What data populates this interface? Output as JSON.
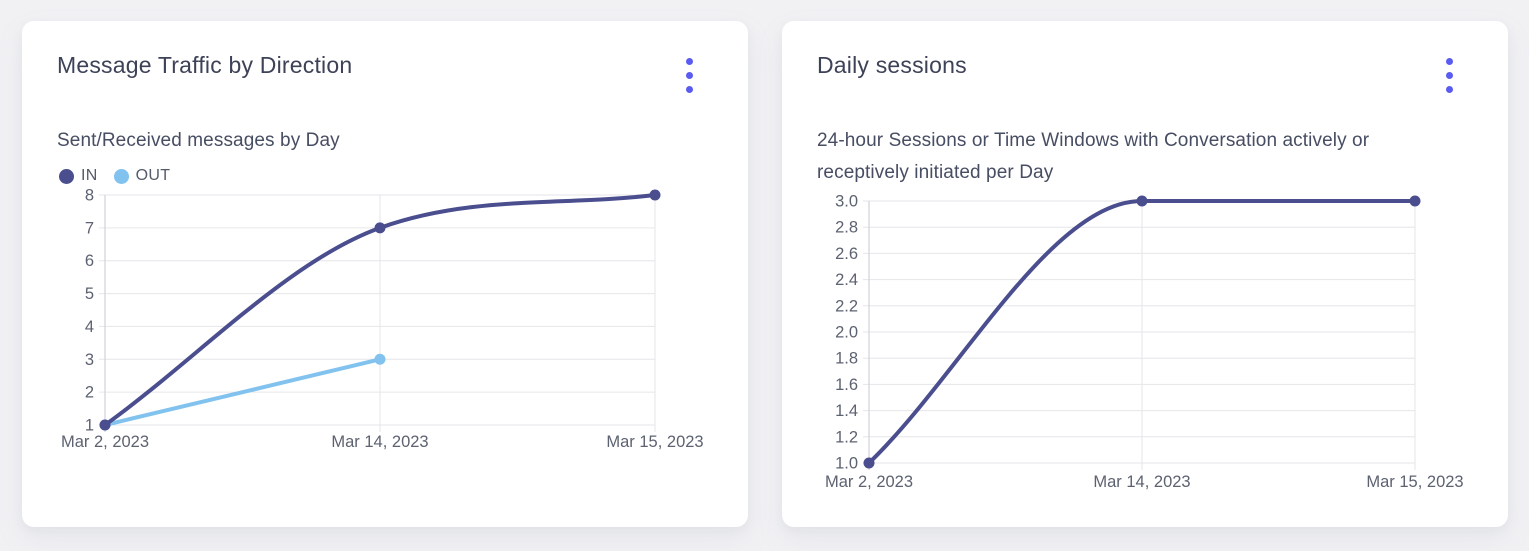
{
  "page": {
    "background": "#f1f1f4",
    "accent": "#5a5bf0"
  },
  "cards": [
    {
      "title": "Message Traffic by Direction",
      "subtitle": "Sent/Received messages by Day",
      "menu_icon": "kebab-menu",
      "chart_data": {
        "type": "line",
        "title": "Message Traffic by Direction",
        "subtitle": "Sent/Received messages by Day",
        "categories": [
          "Mar 2, 2023",
          "Mar 14, 2023",
          "Mar 15, 2023"
        ],
        "series": [
          {
            "name": "IN",
            "color": "#4a4e8e",
            "values": [
              1,
              7,
              8
            ]
          },
          {
            "name": "OUT",
            "color": "#82c2ee",
            "values": [
              1,
              3,
              null
            ]
          }
        ],
        "xlabel": "",
        "ylabel": "",
        "ylim": [
          1,
          8
        ],
        "ytick_step": 1,
        "y_decimals": 0,
        "grid": true,
        "legend_position": "top-left",
        "line_style": "smooth"
      }
    },
    {
      "title": "Daily sessions",
      "subtitle": "24-hour Sessions or Time Windows with Conversation actively or receptively initiated per Day",
      "menu_icon": "kebab-menu",
      "chart_data": {
        "type": "line",
        "title": "Daily sessions",
        "subtitle": "24-hour Sessions or Time Windows with Conversation actively or receptively initiated per Day",
        "categories": [
          "Mar 2, 2023",
          "Mar 14, 2023",
          "Mar 15, 2023"
        ],
        "series": [
          {
            "name": "Daily sessions",
            "color": "#4a4e8e",
            "values": [
              1.0,
              3.0,
              3.0
            ]
          }
        ],
        "xlabel": "",
        "ylabel": "",
        "ylim": [
          1.0,
          3.0
        ],
        "ytick_step": 0.2,
        "y_decimals": 1,
        "grid": true,
        "legend_position": "none",
        "line_style": "smooth"
      }
    }
  ]
}
